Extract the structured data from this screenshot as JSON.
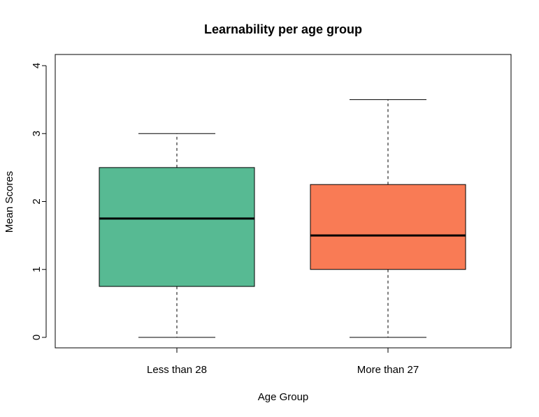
{
  "chart_data": {
    "type": "boxplot",
    "title": "Learnability per age group",
    "xlabel": "Age Group",
    "ylabel": "Mean Scores",
    "ylim": [
      0,
      4
    ],
    "yticks": [
      0,
      1,
      2,
      3,
      4
    ],
    "categories": [
      "Less than 28",
      "More than 27"
    ],
    "boxes": [
      {
        "category": "Less than 28",
        "whisker_low": 0,
        "q1": 0.75,
        "median": 1.75,
        "q3": 2.5,
        "whisker_high": 3,
        "color": "#57BA93"
      },
      {
        "category": "More than 27",
        "whisker_low": 0,
        "q1": 1,
        "median": 1.5,
        "q3": 2.25,
        "whisker_high": 3.5,
        "color": "#F97B55"
      }
    ],
    "grid": false,
    "legend": "none"
  }
}
